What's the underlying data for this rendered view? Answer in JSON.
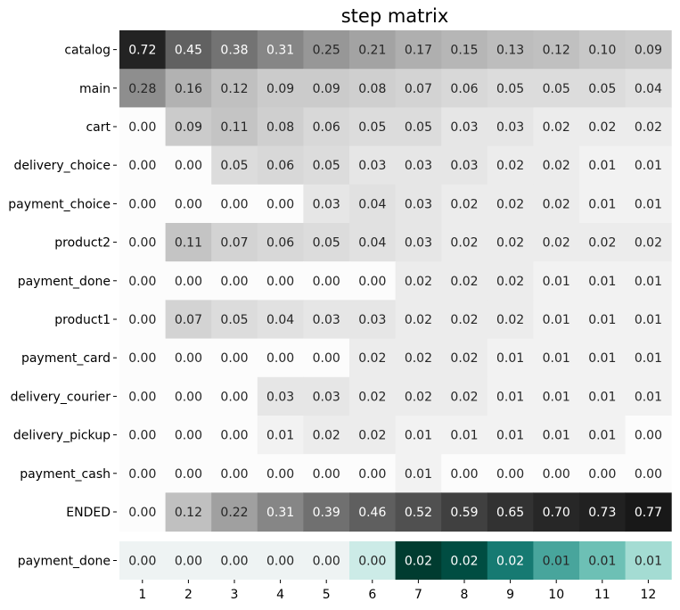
{
  "chart_data": {
    "type": "heatmap",
    "title": "step matrix",
    "x": [
      "1",
      "2",
      "3",
      "4",
      "5",
      "6",
      "7",
      "8",
      "9",
      "10",
      "11",
      "12"
    ],
    "rows": [
      {
        "label": "catalog",
        "values": [
          0.72,
          0.45,
          0.38,
          0.31,
          0.25,
          0.21,
          0.17,
          0.15,
          0.13,
          0.12,
          0.1,
          0.09
        ]
      },
      {
        "label": "main",
        "values": [
          0.28,
          0.16,
          0.12,
          0.09,
          0.09,
          0.08,
          0.07,
          0.06,
          0.05,
          0.05,
          0.05,
          0.04
        ]
      },
      {
        "label": "cart",
        "values": [
          0.0,
          0.09,
          0.11,
          0.08,
          0.06,
          0.05,
          0.05,
          0.03,
          0.03,
          0.02,
          0.02,
          0.02
        ]
      },
      {
        "label": "delivery_choice",
        "values": [
          0.0,
          0.0,
          0.05,
          0.06,
          0.05,
          0.03,
          0.03,
          0.03,
          0.02,
          0.02,
          0.01,
          0.01
        ]
      },
      {
        "label": "payment_choice",
        "values": [
          0.0,
          0.0,
          0.0,
          0.0,
          0.03,
          0.04,
          0.03,
          0.02,
          0.02,
          0.02,
          0.01,
          0.01
        ]
      },
      {
        "label": "product2",
        "values": [
          0.0,
          0.11,
          0.07,
          0.06,
          0.05,
          0.04,
          0.03,
          0.02,
          0.02,
          0.02,
          0.02,
          0.02
        ]
      },
      {
        "label": "payment_done",
        "values": [
          0.0,
          0.0,
          0.0,
          0.0,
          0.0,
          0.0,
          0.02,
          0.02,
          0.02,
          0.01,
          0.01,
          0.01
        ]
      },
      {
        "label": "product1",
        "values": [
          0.0,
          0.07,
          0.05,
          0.04,
          0.03,
          0.03,
          0.02,
          0.02,
          0.02,
          0.01,
          0.01,
          0.01
        ]
      },
      {
        "label": "payment_card",
        "values": [
          0.0,
          0.0,
          0.0,
          0.0,
          0.0,
          0.02,
          0.02,
          0.02,
          0.01,
          0.01,
          0.01,
          0.01
        ]
      },
      {
        "label": "delivery_courier",
        "values": [
          0.0,
          0.0,
          0.0,
          0.03,
          0.03,
          0.02,
          0.02,
          0.02,
          0.01,
          0.01,
          0.01,
          0.01
        ]
      },
      {
        "label": "delivery_pickup",
        "values": [
          0.0,
          0.0,
          0.0,
          0.01,
          0.02,
          0.02,
          0.01,
          0.01,
          0.01,
          0.01,
          0.01,
          0.0
        ]
      },
      {
        "label": "payment_cash",
        "values": [
          0.0,
          0.0,
          0.0,
          0.0,
          0.0,
          0.0,
          0.01,
          0.0,
          0.0,
          0.0,
          0.0,
          0.0
        ]
      },
      {
        "label": "ENDED",
        "values": [
          0.0,
          0.12,
          0.22,
          0.31,
          0.39,
          0.46,
          0.52,
          0.59,
          0.65,
          0.7,
          0.73,
          0.77
        ]
      }
    ],
    "target": {
      "label": "payment_done",
      "values": [
        0.0,
        0.0,
        0.0,
        0.0,
        0.0,
        0.0,
        0.02,
        0.02,
        0.02,
        0.01,
        0.01,
        0.01
      ],
      "color_intensity": [
        0.03,
        0.03,
        0.03,
        0.03,
        0.03,
        0.18,
        1.0,
        0.92,
        0.72,
        0.55,
        0.45,
        0.3
      ]
    },
    "colormaps": {
      "main": [
        "#ffffff",
        "#000000"
      ],
      "target": [
        "#f5f5f5",
        "#c7eae5",
        "#80cdc1",
        "#35978f",
        "#01665e",
        "#003c30"
      ]
    },
    "legend": "none",
    "grid": false
  }
}
